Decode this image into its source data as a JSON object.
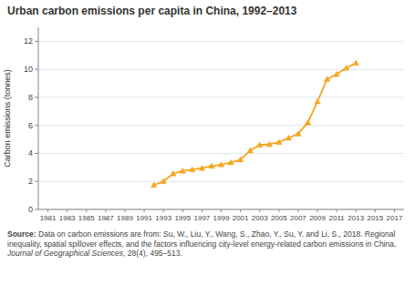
{
  "chart_data": {
    "type": "line",
    "title": "Urban carbon emissions per capita in China, 1992–2013",
    "y_label": "Carbon emissions (tonnes)",
    "source": [
      "Source:",
      "Data on carbon emissions are from: Su, W., Liu, Y., Wang, S., Zhao, Y., Su, Y. and Li, S., 2018. Regional inequality, spatial spillover effects, and the factors influencing city-level energy-related carbon emissions in China.",
      "Journal of Geographical Sciences",
      ", 28(4), 495–513."
    ],
    "x": [
      1992,
      1993,
      1994,
      1995,
      1996,
      1997,
      1998,
      1999,
      2000,
      2001,
      2002,
      2003,
      2004,
      2005,
      2006,
      2007,
      2008,
      2009,
      2010,
      2011,
      2012,
      2013
    ],
    "values": [
      1.75,
      2.0,
      2.55,
      2.75,
      2.85,
      2.95,
      3.1,
      3.2,
      3.35,
      3.55,
      4.2,
      4.6,
      4.65,
      4.8,
      5.1,
      5.4,
      6.2,
      7.7,
      9.3,
      9.65,
      10.1,
      10.45
    ],
    "color": "#f5a623",
    "marker": "triangle",
    "xlim": [
      1980,
      2018
    ],
    "ylim": [
      0,
      13
    ],
    "xticks": [
      1981,
      1983,
      1985,
      1987,
      1989,
      1991,
      1993,
      1995,
      1997,
      1999,
      2001,
      2003,
      2005,
      2007,
      2009,
      2011,
      2013,
      2015,
      2017
    ],
    "yticks": [
      0,
      2,
      4,
      6,
      8,
      10,
      12
    ],
    "grid": true
  }
}
